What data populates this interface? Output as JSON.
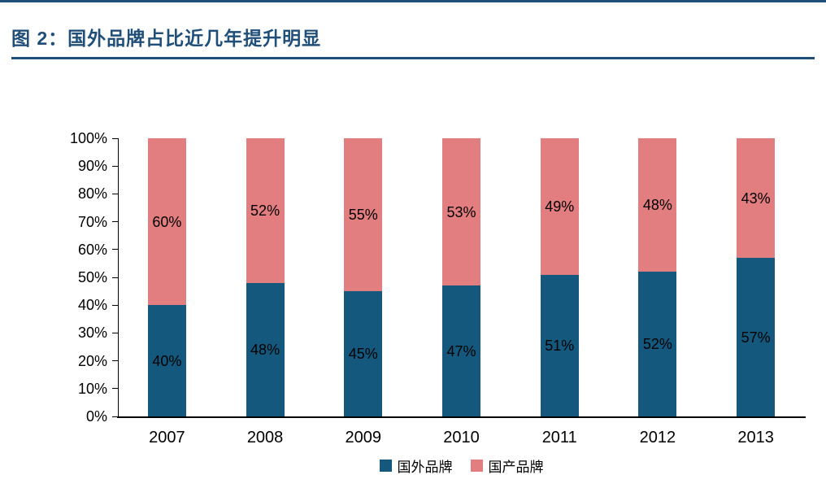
{
  "figure": {
    "label": "图 2：",
    "title_full": "图 2：国外品牌占比近几年提升明显"
  },
  "colors": {
    "title": "#1F4E79",
    "rule": "#1F4E79",
    "axis": "#000000",
    "foreign_brand": "#15587D",
    "domestic_brand": "#E37E80"
  },
  "chart_data": {
    "type": "bar",
    "stacked": true,
    "title": "图 2：国外品牌占比近几年提升明显",
    "categories": [
      "2007",
      "2008",
      "2009",
      "2010",
      "2011",
      "2012",
      "2013"
    ],
    "series": [
      {
        "name": "国外品牌",
        "color": "#15587D",
        "values": [
          40,
          48,
          45,
          47,
          51,
          52,
          57
        ]
      },
      {
        "name": "国产品牌",
        "color": "#E37E80",
        "values": [
          60,
          52,
          55,
          53,
          49,
          48,
          43
        ]
      }
    ],
    "xlabel": "",
    "ylabel": "",
    "ylim": [
      0,
      100
    ],
    "ytick_step": 10,
    "ytick_suffix": "%",
    "data_label_suffix": "%",
    "data_labels": true,
    "grid": false,
    "legend_position": "bottom"
  }
}
